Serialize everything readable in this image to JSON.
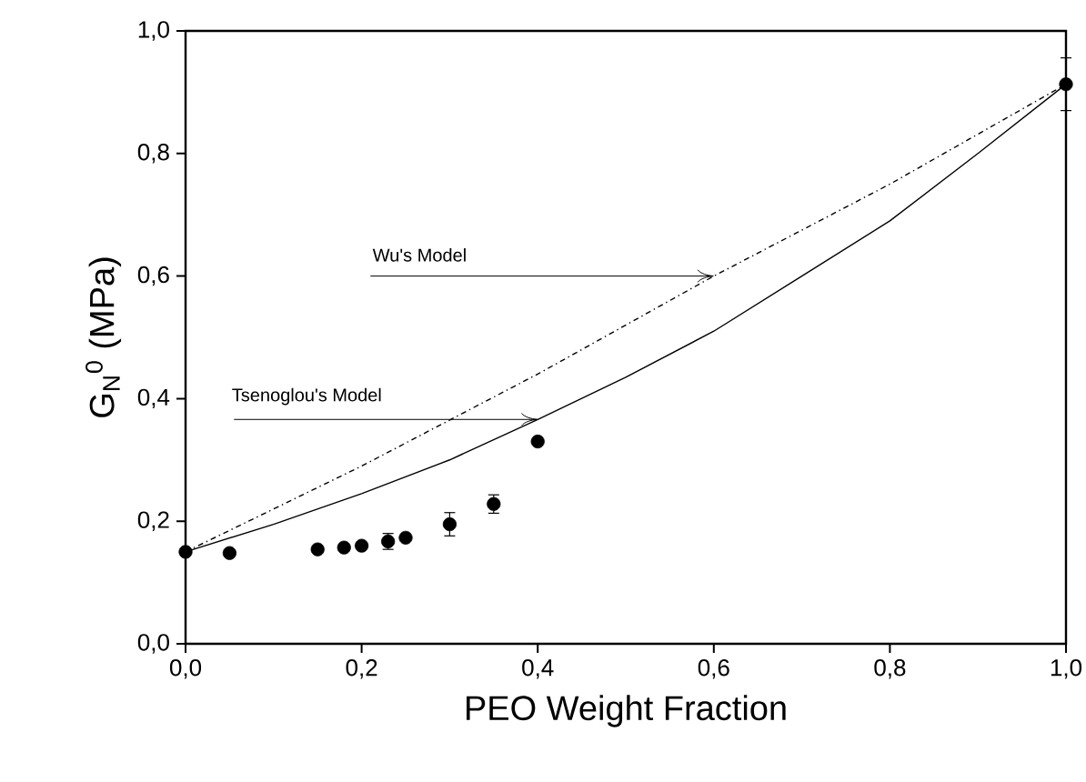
{
  "chart_data": {
    "type": "scatter",
    "xlabel": "PEO Weight Fraction",
    "ylabel": "G$_{N}$$^{0}$ (MPa)",
    "xlim": [
      0,
      1
    ],
    "ylim": [
      0,
      1
    ],
    "xticks": [
      {
        "value": 0,
        "label": "0,0"
      },
      {
        "value": 0.2,
        "label": "0,2"
      },
      {
        "value": 0.4,
        "label": "0,4"
      },
      {
        "value": 0.6,
        "label": "0,6"
      },
      {
        "value": 0.8,
        "label": "0,8"
      },
      {
        "value": 1,
        "label": "1,0"
      }
    ],
    "yticks": [
      {
        "value": 0,
        "label": "0,0"
      },
      {
        "value": 0.2,
        "label": "0,2"
      },
      {
        "value": 0.4,
        "label": "0,4"
      },
      {
        "value": 0.6,
        "label": "0,6"
      },
      {
        "value": 0.8,
        "label": "0,8"
      },
      {
        "value": 1,
        "label": "1,0"
      }
    ],
    "grid": false,
    "series": [
      {
        "color": "#000000",
        "marker": "circle",
        "x": [
          0,
          0.05,
          0.15,
          0.18,
          0.2,
          0.23,
          0.25,
          0.3,
          0.35,
          0.4,
          1.0
        ],
        "values": [
          0.15,
          0.148,
          0.154,
          0.157,
          0.16,
          0.167,
          0.173,
          0.195,
          0.228,
          0.33,
          0.913
        ],
        "errors": [
          null,
          null,
          null,
          null,
          null,
          0.013,
          null,
          0.019,
          0.015,
          null,
          0.043
        ]
      },
      {
        "type": "line",
        "color": "#000000",
        "line_style": "dashdot",
        "x": [
          0,
          0.2,
          0.4,
          0.6,
          0.8,
          1.0
        ],
        "values": [
          0.15,
          0.29,
          0.44,
          0.6,
          0.75,
          0.913
        ]
      },
      {
        "type": "line",
        "color": "#000000",
        "line_style": "solid",
        "x": [
          0,
          0.1,
          0.2,
          0.3,
          0.4,
          0.5,
          0.6,
          0.7,
          0.8,
          0.9,
          1.0
        ],
        "values": [
          0.15,
          0.195,
          0.245,
          0.3,
          0.366,
          0.435,
          0.51,
          0.6,
          0.69,
          0.8,
          0.913
        ]
      }
    ],
    "annotations": [
      {
        "text": "Wu's Model",
        "x": 0.6,
        "y": 0.6
      },
      {
        "text": "Tsenoglou's Model",
        "x": 0.4,
        "y": 0.366
      }
    ]
  }
}
